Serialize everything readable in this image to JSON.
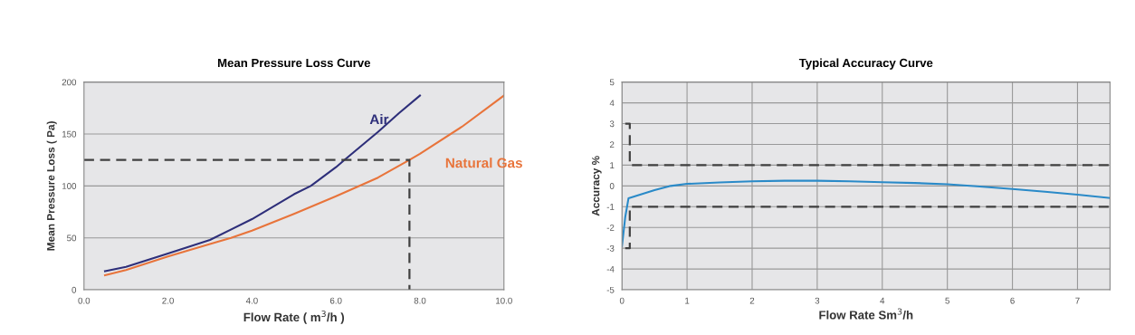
{
  "chart_data": [
    {
      "type": "line",
      "title": "Mean Pressure Loss Curve",
      "xlabel": "Flow Rate ( m$^{3}$/h )",
      "ylabel": "Mean Pressure Loss ( Pa)",
      "xlim": [
        0,
        10
      ],
      "ylim": [
        0,
        200
      ],
      "xticks": [
        {
          "value": 0,
          "label": "0.0"
        },
        {
          "value": 2,
          "label": "2.0"
        },
        {
          "value": 4,
          "label": "4.0"
        },
        {
          "value": 6,
          "label": "6.0"
        },
        {
          "value": 8,
          "label": "8.0"
        },
        {
          "value": 10,
          "label": "10.0"
        }
      ],
      "yticks": [
        0,
        50,
        100,
        150,
        200
      ],
      "grid": "y",
      "legend": false,
      "marker": "none",
      "series": [
        {
          "name": "Air",
          "color": "#2e2f7a",
          "x": [
            0.5,
            1,
            2,
            3,
            4,
            5,
            5.4,
            6,
            6.2,
            7,
            7.5,
            8
          ],
          "values": [
            18,
            22,
            35,
            48,
            68,
            92,
            100,
            118,
            125,
            152,
            170,
            187
          ]
        },
        {
          "name": "Natural Gas",
          "color": "#e8743b",
          "x": [
            0.5,
            1,
            2,
            3,
            3.5,
            4,
            5,
            6,
            7,
            7.75,
            8,
            9,
            10
          ],
          "values": [
            14,
            19,
            32,
            44,
            50,
            57,
            73,
            90,
            108,
            125,
            131,
            157,
            187
          ]
        },
        {
          "color": "#404040",
          "line_style": "dashed",
          "x": [
            0,
            7.75,
            7.75
          ],
          "values": [
            125,
            125,
            0
          ]
        }
      ]
    },
    {
      "type": "line",
      "title": "Typical Accuracy Curve",
      "xlabel": "Flow Rate Sm$^{3}$/h",
      "ylabel": "Accuracy %",
      "xlim": [
        0,
        7.5
      ],
      "ylim": [
        -5,
        5
      ],
      "xticks": [
        0,
        1,
        2,
        3,
        4,
        5,
        6,
        7
      ],
      "yticks": [
        -5,
        -4,
        -3,
        -2,
        -1,
        0,
        1,
        2,
        3,
        4,
        5
      ],
      "grid": true,
      "legend": false,
      "marker": "none",
      "series": [
        {
          "color": "#2a8ac8",
          "x": [
            0,
            0.05,
            0.1,
            0.2,
            0.5,
            0.75,
            1,
            1.5,
            2,
            2.5,
            3,
            3.5,
            4,
            4.5,
            5,
            5.5,
            6,
            6.5,
            7,
            7.5
          ],
          "values": [
            -2.9,
            -1.5,
            -0.6,
            -0.5,
            -0.2,
            0,
            0.1,
            0.17,
            0.22,
            0.25,
            0.25,
            0.22,
            0.18,
            0.14,
            0.08,
            -0.03,
            -0.15,
            -0.28,
            -0.42,
            -0.58
          ]
        },
        {
          "color": "#404040",
          "line_style": "dashed",
          "x": [
            0.05,
            0.12,
            0.12,
            7.5
          ],
          "values": [
            3,
            3,
            1,
            1
          ]
        },
        {
          "color": "#404040",
          "line_style": "dashed",
          "x": [
            0.05,
            0.12,
            0.12,
            7.5
          ],
          "values": [
            -3,
            -3,
            -1,
            -1
          ]
        }
      ]
    }
  ]
}
